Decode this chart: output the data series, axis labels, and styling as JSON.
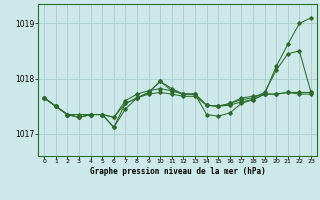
{
  "bg_color": "#cce8e8",
  "line_color": "#2d6b2d",
  "grid_color": "#aacccc",
  "xlabel": "Graphe pression niveau de la mer (hPa)",
  "xlim": [
    -0.5,
    23.5
  ],
  "ylim": [
    1016.6,
    1019.35
  ],
  "yticks": [
    1017,
    1018,
    1019
  ],
  "xticks": [
    0,
    1,
    2,
    3,
    4,
    5,
    6,
    7,
    8,
    9,
    10,
    11,
    12,
    13,
    14,
    15,
    16,
    17,
    18,
    19,
    20,
    21,
    22,
    23
  ],
  "series": [
    {
      "x": [
        0,
        1,
        2,
        3,
        4,
        5,
        6,
        7,
        8,
        9,
        10,
        11,
        12,
        13,
        14,
        15,
        16,
        17,
        18,
        19,
        20,
        21,
        22,
        23
      ],
      "y": [
        1017.65,
        1017.5,
        1017.35,
        1017.35,
        1017.35,
        1017.35,
        1017.12,
        1017.45,
        1017.65,
        1017.75,
        1017.95,
        1017.82,
        1017.72,
        1017.72,
        1017.52,
        1017.5,
        1017.52,
        1017.58,
        1017.62,
        1017.72,
        1018.22,
        1018.62,
        1019.0,
        1019.1
      ]
    },
    {
      "x": [
        0,
        1,
        2,
        3,
        4,
        5,
        6,
        7,
        8,
        9,
        10,
        11,
        12,
        13,
        14,
        15,
        16,
        17,
        18,
        19,
        20,
        21,
        22,
        23
      ],
      "y": [
        1017.65,
        1017.5,
        1017.35,
        1017.3,
        1017.35,
        1017.35,
        1017.3,
        1017.6,
        1017.72,
        1017.78,
        1017.82,
        1017.78,
        1017.72,
        1017.72,
        1017.52,
        1017.5,
        1017.55,
        1017.62,
        1017.65,
        1017.75,
        1018.15,
        1018.45,
        1018.5,
        1017.75
      ]
    },
    {
      "x": [
        0,
        1,
        2,
        3,
        4,
        5,
        6,
        7,
        8,
        9,
        10,
        11,
        12,
        13,
        14,
        15,
        16,
        17,
        18,
        19,
        20,
        21,
        22,
        23
      ],
      "y": [
        1017.65,
        1017.5,
        1017.35,
        1017.3,
        1017.35,
        1017.35,
        1017.3,
        1017.55,
        1017.65,
        1017.72,
        1017.75,
        1017.72,
        1017.68,
        1017.68,
        1017.52,
        1017.5,
        1017.55,
        1017.65,
        1017.68,
        1017.72,
        1017.72,
        1017.75,
        1017.75,
        1017.75
      ]
    },
    {
      "x": [
        0,
        1,
        2,
        3,
        4,
        5,
        6,
        7,
        8,
        9,
        10,
        11,
        12,
        13,
        14,
        15,
        16,
        17,
        18,
        19,
        20,
        21,
        22,
        23
      ],
      "y": [
        1017.65,
        1017.5,
        1017.35,
        1017.3,
        1017.35,
        1017.35,
        1017.12,
        1017.55,
        1017.65,
        1017.75,
        1017.95,
        1017.78,
        1017.72,
        1017.72,
        1017.35,
        1017.32,
        1017.38,
        1017.55,
        1017.62,
        1017.72,
        1017.72,
        1017.75,
        1017.72,
        1017.72
      ]
    }
  ]
}
